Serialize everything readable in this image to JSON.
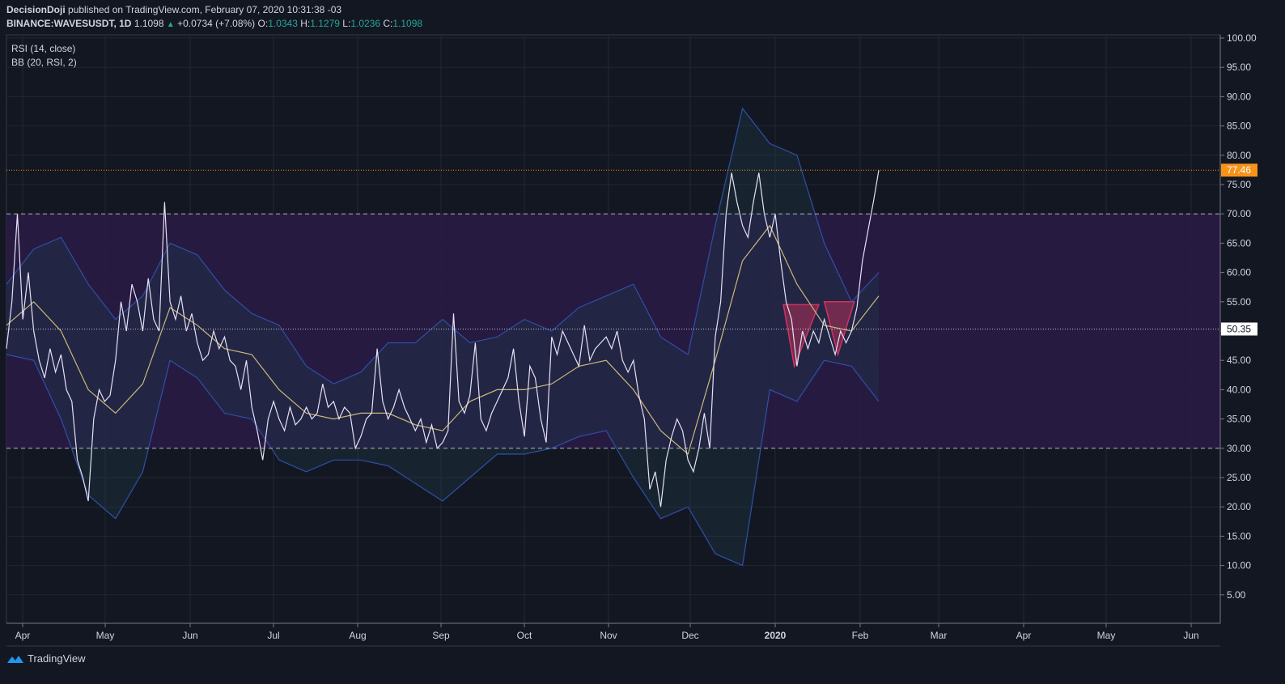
{
  "header": {
    "author": "DecisionDoji",
    "published": "published on TradingView.com, February 07, 2020 10:31:38 -03",
    "symbol": "BINANCE:WAVESUSDT, 1D",
    "last": "1.1098",
    "change": "+0.0734 (+7.08%)",
    "o_label": "O:",
    "o": "1.0343",
    "h_label": "H:",
    "h": "1.1279",
    "l_label": "L:",
    "l": "1.0236",
    "c_label": "C:",
    "c": "1.1098"
  },
  "legend": {
    "rsi": "RSI (14, close)",
    "bb": "BB (20, RSI, 2)"
  },
  "footer": {
    "brand": "TradingView"
  },
  "colors": {
    "background": "#131722",
    "band": "#2a1b47",
    "rsi": "#e6e1f5",
    "basis": "#c8b97a",
    "bb": "#2f4fa8",
    "pattern": "#d0335e",
    "price_label": "#f7931a"
  },
  "chart_data": {
    "type": "line",
    "ylim": [
      0,
      100
    ],
    "yticks": [
      "100.00",
      "95.00",
      "90.00",
      "85.00",
      "80.00",
      "75.00",
      "70.00",
      "65.00",
      "60.00",
      "55.00",
      "50.00",
      "45.00",
      "40.00",
      "35.00",
      "30.00",
      "25.00",
      "20.00",
      "15.00",
      "10.00",
      "5.00"
    ],
    "xticks": [
      "Apr",
      "May",
      "Jun",
      "Jul",
      "Aug",
      "Sep",
      "Oct",
      "Nov",
      "Dec",
      "2020",
      "Feb",
      "Mar",
      "Apr",
      "May",
      "Jun"
    ],
    "band_levels": [
      30,
      70
    ],
    "current_value": "77.46",
    "mid_value": "50.35",
    "series": [
      {
        "name": "RSI (14, close)",
        "x": [
          0,
          2,
          4,
          6,
          8,
          10,
          12,
          14,
          16,
          18,
          20,
          22,
          24,
          26,
          28,
          30,
          32,
          34,
          36,
          38,
          40,
          42,
          44,
          46,
          48,
          50,
          52,
          54,
          56,
          58,
          60,
          62,
          64,
          66,
          68,
          70,
          72,
          74,
          76,
          78,
          80,
          82,
          84,
          86,
          88,
          90,
          92,
          94,
          96,
          98,
          100,
          102,
          104,
          106,
          108,
          110,
          112,
          114,
          116,
          118,
          120,
          122,
          124,
          126,
          128,
          130,
          132,
          134,
          136,
          138,
          140,
          142,
          144,
          146,
          148,
          150,
          152,
          154,
          156,
          158,
          160,
          162,
          164,
          166,
          168,
          170,
          172,
          174,
          176,
          178,
          180,
          182,
          184,
          186,
          188,
          190,
          192,
          194,
          196,
          198,
          200,
          202,
          204,
          206,
          208,
          210,
          212,
          214,
          216,
          218,
          220,
          222,
          224,
          226,
          228,
          230,
          232,
          234,
          236,
          238,
          240,
          242,
          244,
          246,
          248,
          250,
          252,
          254,
          256,
          258,
          260,
          262,
          264,
          266,
          268,
          270,
          272,
          274,
          276,
          278,
          280,
          282,
          284,
          286,
          288,
          290,
          292,
          294,
          296,
          298,
          300,
          302,
          304,
          306,
          308,
          310,
          312,
          314,
          316,
          318,
          320
        ],
        "values": [
          47,
          55,
          70,
          52,
          60,
          50,
          45,
          42,
          47,
          43,
          46,
          40,
          38,
          28,
          25,
          21,
          35,
          40,
          38,
          39,
          45,
          55,
          50,
          58,
          55,
          50,
          59,
          52,
          50,
          72,
          55,
          52,
          56,
          50,
          53,
          48,
          45,
          46,
          50,
          47,
          49,
          45,
          44,
          40,
          45,
          37,
          33,
          28,
          35,
          38,
          35,
          33,
          37,
          34,
          35,
          37,
          35,
          36,
          41,
          37,
          38,
          35,
          37,
          36,
          30,
          32,
          35,
          36,
          47,
          38,
          35,
          37,
          40,
          37,
          35,
          33,
          35,
          31,
          34,
          30,
          31,
          33,
          53,
          38,
          36,
          39,
          48,
          35,
          33,
          36,
          38,
          40,
          42,
          47,
          38,
          32,
          44,
          42,
          35,
          31,
          49,
          46,
          50,
          48,
          46,
          44,
          51,
          45,
          47,
          48,
          49,
          47,
          50,
          45,
          43,
          45,
          39,
          35,
          23,
          26,
          20,
          28,
          32,
          35,
          33,
          28,
          26,
          30,
          36,
          30,
          49,
          55,
          70,
          77,
          72,
          68,
          66,
          72,
          77,
          70,
          66,
          70,
          62,
          55,
          52,
          44,
          50,
          47,
          50,
          48,
          52,
          49,
          46,
          50,
          48,
          50,
          54,
          62,
          67,
          72,
          77.46
        ]
      },
      {
        "name": "BB basis",
        "x": [
          0,
          10,
          20,
          30,
          40,
          50,
          60,
          70,
          80,
          90,
          100,
          110,
          120,
          130,
          140,
          150,
          160,
          170,
          180,
          190,
          200,
          210,
          220,
          230,
          240,
          250,
          260,
          270,
          280,
          290,
          300,
          310,
          320
        ],
        "values": [
          51,
          55,
          50,
          40,
          36,
          41,
          54,
          51,
          47,
          46,
          40,
          36,
          35,
          36,
          36,
          34,
          33,
          38,
          40,
          40,
          41,
          44,
          45,
          40,
          33,
          29,
          45,
          62,
          68,
          58,
          51,
          50,
          56
        ]
      },
      {
        "name": "BB upper",
        "x": [
          0,
          10,
          20,
          30,
          40,
          50,
          60,
          70,
          80,
          90,
          100,
          110,
          120,
          130,
          140,
          150,
          160,
          170,
          180,
          190,
          200,
          210,
          220,
          230,
          240,
          250,
          260,
          270,
          280,
          290,
          300,
          310,
          320
        ],
        "values": [
          58,
          64,
          66,
          58,
          52,
          56,
          65,
          63,
          57,
          53,
          51,
          44,
          41,
          43,
          48,
          48,
          52,
          48,
          49,
          52,
          50,
          54,
          56,
          58,
          49,
          46,
          68,
          88,
          82,
          80,
          65,
          55,
          60
        ]
      },
      {
        "name": "BB lower",
        "x": [
          0,
          10,
          20,
          30,
          40,
          50,
          60,
          70,
          80,
          90,
          100,
          110,
          120,
          130,
          140,
          150,
          160,
          170,
          180,
          190,
          200,
          210,
          220,
          230,
          240,
          250,
          260,
          270,
          280,
          290,
          300,
          310,
          320
        ],
        "values": [
          46,
          45,
          35,
          22,
          18,
          26,
          45,
          42,
          36,
          35,
          28,
          26,
          28,
          28,
          27,
          24,
          21,
          25,
          29,
          29,
          30,
          32,
          33,
          25,
          18,
          20,
          12,
          10,
          40,
          38,
          45,
          44,
          38
        ]
      }
    ]
  }
}
